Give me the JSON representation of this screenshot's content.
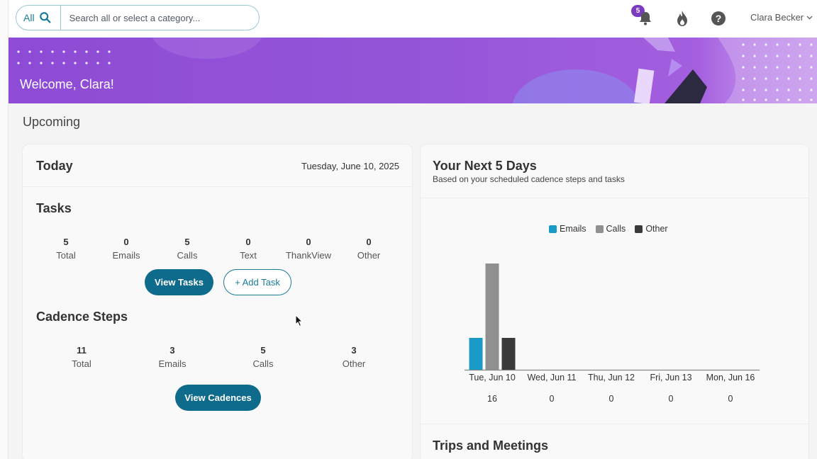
{
  "search": {
    "scope_label": "All",
    "placeholder": "Search all or select a category..."
  },
  "header": {
    "notification_count": "5",
    "user_name": "Clara Becker"
  },
  "banner": {
    "welcome": "Welcome, Clara!"
  },
  "page": {
    "section_title": "Upcoming"
  },
  "today": {
    "title": "Today",
    "date": "Tuesday, June 10, 2025",
    "tasks": {
      "title": "Tasks",
      "stats": [
        {
          "value": "5",
          "label": "Total"
        },
        {
          "value": "0",
          "label": "Emails"
        },
        {
          "value": "5",
          "label": "Calls"
        },
        {
          "value": "0",
          "label": "Text"
        },
        {
          "value": "0",
          "label": "ThankView"
        },
        {
          "value": "0",
          "label": "Other"
        }
      ],
      "view_button": "View Tasks",
      "add_button": "+ Add Task"
    },
    "cadence": {
      "title": "Cadence Steps",
      "stats": [
        {
          "value": "11",
          "label": "Total"
        },
        {
          "value": "3",
          "label": "Emails"
        },
        {
          "value": "5",
          "label": "Calls"
        },
        {
          "value": "3",
          "label": "Other"
        }
      ],
      "view_button": "View Cadences"
    }
  },
  "next5": {
    "title": "Your Next 5 Days",
    "subtitle": "Based on your scheduled cadence steps and tasks",
    "trips_title": "Trips and Meetings"
  },
  "chart_data": {
    "type": "bar",
    "categories": [
      "Tue, Jun 10",
      "Wed, Jun 11",
      "Thu, Jun 12",
      "Fri, Jun 13",
      "Mon, Jun 16"
    ],
    "totals": [
      "16",
      "0",
      "0",
      "0",
      "0"
    ],
    "series": [
      {
        "name": "Emails",
        "color": "#1a9bc7",
        "values": [
          3,
          0,
          0,
          0,
          0
        ]
      },
      {
        "name": "Calls",
        "color": "#909090",
        "values": [
          10,
          0,
          0,
          0,
          0
        ]
      },
      {
        "name": "Other",
        "color": "#3a3a3a",
        "values": [
          3,
          0,
          0,
          0,
          0
        ]
      }
    ],
    "ylim": [
      0,
      10
    ],
    "legend": "top",
    "grid": false
  },
  "colors": {
    "primary": "#0f6b8c",
    "accent": "#1b7c98",
    "banner": "#8e4bd6",
    "badge": "#7a3bc0"
  }
}
